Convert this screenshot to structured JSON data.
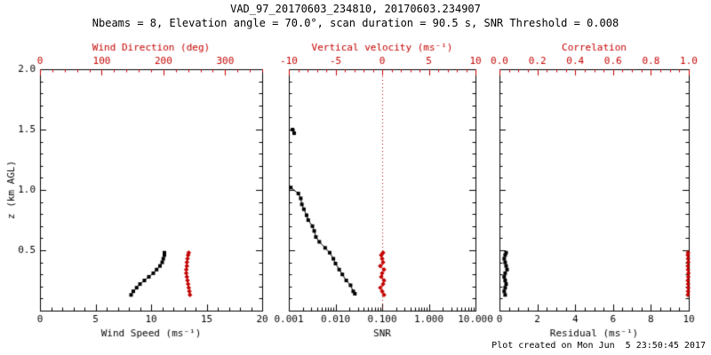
{
  "header": {
    "title": "VAD_97_20170603_234810, 20170603.234907",
    "subtitle": "Nbeams = 8, Elevation angle = 70.0°, scan duration = 90.5 s, SNR Threshold = 0.008"
  },
  "footer": {
    "created": "Plot created on Mon Jun  5 23:50:45 2017"
  },
  "colors": {
    "axis": "#000000",
    "accent": "#c40000",
    "background": "#ffffff"
  },
  "chart_data": [
    {
      "type": "line",
      "grid": false,
      "y_axis": {
        "label": "z (km AGL)",
        "min": 0,
        "max": 2,
        "major_ticks": [
          0,
          0.5,
          1,
          1.5,
          2
        ],
        "tick_labels": [
          "",
          "0.5",
          "1.0",
          "1.5",
          "2.0"
        ],
        "minor_step": 0.1,
        "show_labels": true
      },
      "x_bottom": {
        "label": "Wind Speed (ms⁻¹)",
        "min": 0,
        "max": 20,
        "log": false,
        "ticks": [
          0,
          5,
          10,
          15,
          20
        ],
        "tick_labels": [
          "0",
          "5",
          "10",
          "15",
          "20"
        ],
        "minor_step": 1
      },
      "x_top": {
        "label": "Wind Direction (deg)",
        "min": 0,
        "max": 360,
        "ticks": [
          0,
          100,
          200,
          300
        ],
        "tick_labels": [
          "0",
          "100",
          "200",
          "300"
        ],
        "minor_step": 20
      },
      "series": [
        {
          "name": "wind_speed",
          "axis": "bottom",
          "color": "black",
          "marker": "square",
          "x": [
            8.2,
            8.4,
            8.7,
            9.0,
            9.4,
            9.8,
            10.2,
            10.5,
            10.8,
            11.0,
            11.1,
            11.2,
            11.2
          ],
          "z": [
            0.13,
            0.16,
            0.19,
            0.22,
            0.25,
            0.28,
            0.31,
            0.34,
            0.37,
            0.4,
            0.43,
            0.46,
            0.48
          ]
        },
        {
          "name": "wind_direction",
          "axis": "top",
          "color": "red",
          "marker": "diamond",
          "x": [
            243,
            242,
            241,
            240,
            239,
            238,
            237,
            237,
            238,
            238,
            239,
            240,
            241
          ],
          "z": [
            0.13,
            0.16,
            0.19,
            0.22,
            0.25,
            0.28,
            0.31,
            0.34,
            0.37,
            0.4,
            0.43,
            0.46,
            0.48
          ]
        }
      ]
    },
    {
      "type": "line",
      "grid": false,
      "y_axis": {
        "label": "",
        "min": 0,
        "max": 2,
        "major_ticks": [
          0,
          0.5,
          1,
          1.5,
          2
        ],
        "tick_labels": [
          "",
          "",
          "",
          "",
          ""
        ],
        "minor_step": 0.1,
        "show_labels": false
      },
      "x_bottom": {
        "label": "SNR",
        "min": 0.001,
        "max": 10,
        "log": true,
        "ticks": [
          0.001,
          0.01,
          0.1,
          1,
          10
        ],
        "tick_labels": [
          "0.001",
          "0.010",
          "0.100",
          "1.000",
          "10.000"
        ]
      },
      "x_top": {
        "label": "Vertical velocity (ms⁻¹)",
        "min": -10,
        "max": 10,
        "ticks": [
          -10,
          -5,
          0,
          5,
          10
        ],
        "tick_labels": [
          "-10",
          "-5",
          "0",
          "5",
          "10"
        ],
        "minor_step": 1
      },
      "vline": {
        "axis": "top",
        "x": 0,
        "style": "dotted",
        "color": "red"
      },
      "series": [
        {
          "name": "snr_upper",
          "axis": "bottom",
          "color": "black",
          "marker": "square",
          "x": [
            0.0012,
            0.0013
          ],
          "z": [
            1.5,
            1.47
          ]
        },
        {
          "name": "snr",
          "axis": "bottom",
          "color": "black",
          "marker": "square",
          "x": [
            0.0011,
            0.0016,
            0.0018,
            0.0019,
            0.0021,
            0.0024,
            0.0026,
            0.0032,
            0.0035,
            0.0038,
            0.0045,
            0.006,
            0.0075,
            0.009,
            0.01,
            0.012,
            0.014,
            0.017,
            0.021,
            0.024,
            0.026
          ],
          "z": [
            1.02,
            0.97,
            0.93,
            0.88,
            0.84,
            0.79,
            0.75,
            0.7,
            0.66,
            0.61,
            0.57,
            0.52,
            0.48,
            0.43,
            0.39,
            0.34,
            0.3,
            0.25,
            0.21,
            0.16,
            0.14
          ]
        },
        {
          "name": "vertical_velocity",
          "axis": "top",
          "color": "red",
          "marker": "diamond",
          "x": [
            0.2,
            0.0,
            -0.2,
            0.1,
            0.2,
            -0.1,
            0.0,
            0.2,
            -0.2,
            0.1,
            0.0,
            -0.1,
            0.1
          ],
          "z": [
            0.13,
            0.16,
            0.19,
            0.22,
            0.25,
            0.28,
            0.31,
            0.34,
            0.37,
            0.4,
            0.43,
            0.46,
            0.48
          ]
        }
      ]
    },
    {
      "type": "line",
      "grid": false,
      "y_axis": {
        "label": "",
        "min": 0,
        "max": 2,
        "major_ticks": [
          0,
          0.5,
          1,
          1.5,
          2
        ],
        "tick_labels": [
          "",
          "",
          "",
          "",
          ""
        ],
        "minor_step": 0.1,
        "show_labels": false
      },
      "x_bottom": {
        "label": "Residual (ms⁻¹)",
        "min": 0,
        "max": 10,
        "log": false,
        "ticks": [
          0,
          2,
          4,
          6,
          8,
          10
        ],
        "tick_labels": [
          "0",
          "2",
          "4",
          "6",
          "8",
          "10"
        ],
        "minor_step": 0.5
      },
      "x_top": {
        "label": "Correlation",
        "min": 0,
        "max": 1,
        "ticks": [
          0,
          0.2,
          0.4,
          0.6,
          0.8,
          1.0
        ],
        "tick_labels": [
          "0.0",
          "0.2",
          "0.4",
          "0.6",
          "0.8",
          "1.0"
        ],
        "minor_step": 0.05
      },
      "series": [
        {
          "name": "residual",
          "axis": "bottom",
          "color": "black",
          "marker": "square",
          "x": [
            0.3,
            0.25,
            0.3,
            0.35,
            0.3,
            0.25,
            0.3,
            0.4,
            0.35,
            0.3,
            0.25,
            0.3,
            0.35
          ],
          "z": [
            0.13,
            0.16,
            0.19,
            0.22,
            0.25,
            0.28,
            0.31,
            0.34,
            0.37,
            0.4,
            0.43,
            0.46,
            0.48
          ]
        },
        {
          "name": "correlation",
          "axis": "top",
          "color": "red",
          "marker": "diamond",
          "x": [
            0.995,
            0.996,
            0.997,
            0.996,
            0.995,
            0.997,
            0.998,
            0.996,
            0.995,
            0.997,
            0.996,
            0.995,
            0.996
          ],
          "z": [
            0.13,
            0.16,
            0.19,
            0.22,
            0.25,
            0.28,
            0.31,
            0.34,
            0.37,
            0.4,
            0.43,
            0.46,
            0.48
          ]
        }
      ]
    }
  ]
}
